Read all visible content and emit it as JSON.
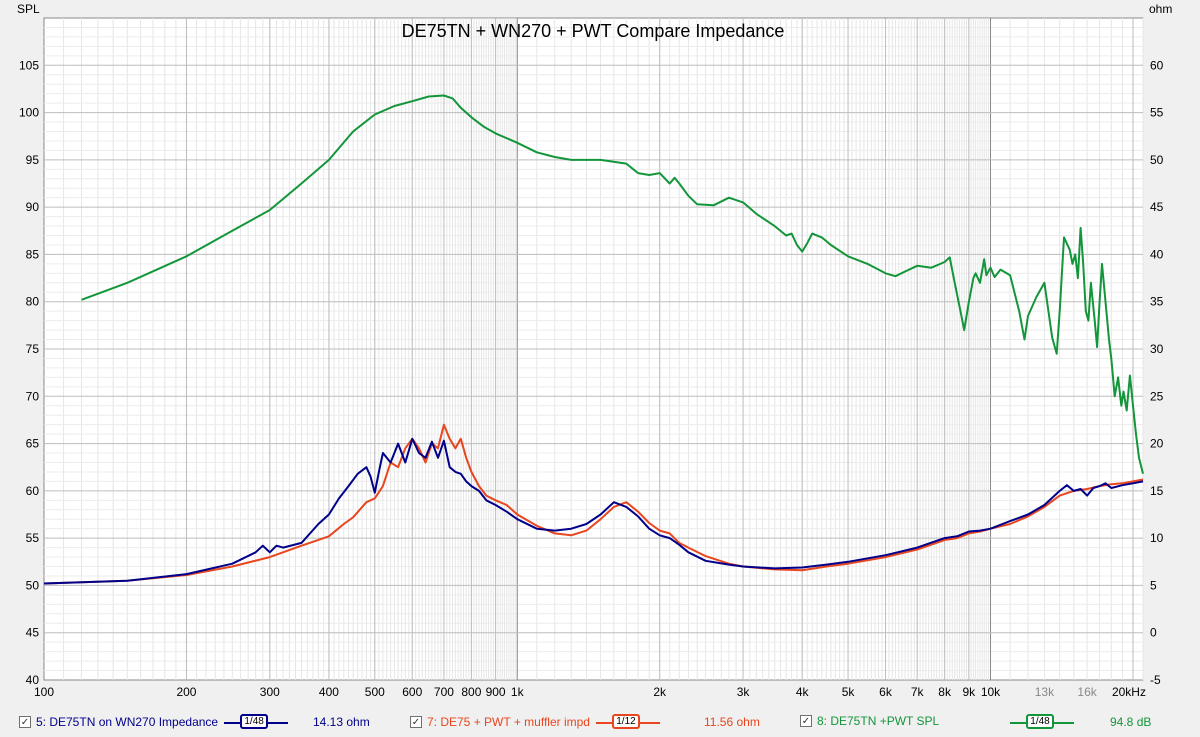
{
  "chart_data": {
    "type": "line",
    "title": "DE75TN + WN270 + PWT Compare Impedance",
    "ylabel_left": "SPL",
    "ylabel_right": "ohm",
    "x_scale": "log",
    "xlim": [
      100,
      21000
    ],
    "ylim_left": [
      40,
      110
    ],
    "ylim_right": [
      -5,
      65
    ],
    "grid": true,
    "x_ticks": [
      {
        "v": 100,
        "label": "100"
      },
      {
        "v": 200,
        "label": "200"
      },
      {
        "v": 300,
        "label": "300"
      },
      {
        "v": 400,
        "label": "400"
      },
      {
        "v": 500,
        "label": "500"
      },
      {
        "v": 600,
        "label": "600"
      },
      {
        "v": 700,
        "label": "700"
      },
      {
        "v": 800,
        "label": "800"
      },
      {
        "v": 900,
        "label": "900"
      },
      {
        "v": 1000,
        "label": "1k"
      },
      {
        "v": 2000,
        "label": "2k"
      },
      {
        "v": 3000,
        "label": "3k"
      },
      {
        "v": 4000,
        "label": "4k"
      },
      {
        "v": 5000,
        "label": "5k"
      },
      {
        "v": 6000,
        "label": "6k"
      },
      {
        "v": 7000,
        "label": "7k"
      },
      {
        "v": 8000,
        "label": "8k"
      },
      {
        "v": 9000,
        "label": "9k"
      },
      {
        "v": 10000,
        "label": "10k"
      },
      {
        "v": 13000,
        "label": "13k"
      },
      {
        "v": 16000,
        "label": "16k"
      },
      {
        "v": 20000,
        "label": "20kHz"
      }
    ],
    "y_ticks_left": [
      40,
      45,
      50,
      55,
      60,
      65,
      70,
      75,
      80,
      85,
      90,
      95,
      100,
      105
    ],
    "y_ticks_right": [
      -5,
      0,
      5,
      10,
      15,
      20,
      25,
      30,
      35,
      40,
      45,
      50,
      55,
      60
    ],
    "series": [
      {
        "name": "5: DE75TN on WN270 Impedance",
        "axis": "right",
        "color": "#00008b",
        "smoothing": "1/48",
        "cursor_value": "14.13 ohm",
        "x": [
          100,
          150,
          200,
          250,
          280,
          290,
          300,
          310,
          320,
          350,
          380,
          400,
          420,
          440,
          460,
          480,
          490,
          500,
          510,
          520,
          540,
          560,
          580,
          600,
          620,
          640,
          660,
          680,
          700,
          720,
          740,
          760,
          780,
          800,
          830,
          860,
          900,
          950,
          1000,
          1100,
          1200,
          1300,
          1400,
          1500,
          1600,
          1700,
          1800,
          1900,
          2000,
          2100,
          2200,
          2300,
          2500,
          2800,
          3000,
          3500,
          4000,
          4500,
          5000,
          6000,
          7000,
          8000,
          8500,
          9000,
          9500,
          10000,
          11000,
          12000,
          13000,
          14000,
          14500,
          15000,
          15500,
          16000,
          16500,
          17000,
          17500,
          18000,
          19000,
          20000,
          21000
        ],
        "y": [
          5.2,
          5.5,
          6.2,
          7.3,
          8.5,
          9.2,
          8.5,
          9.2,
          9.0,
          9.5,
          11.5,
          12.5,
          14.2,
          15.5,
          16.8,
          17.5,
          16.5,
          14.8,
          17.0,
          19.0,
          18.0,
          20.0,
          18.0,
          20.5,
          19.0,
          18.5,
          20.2,
          18.5,
          20.3,
          17.5,
          17.0,
          16.8,
          16.0,
          15.5,
          15.0,
          14.0,
          13.5,
          12.8,
          12.0,
          11.0,
          10.8,
          11.0,
          11.5,
          12.5,
          13.8,
          13.3,
          12.3,
          11.0,
          10.3,
          10.0,
          9.3,
          8.5,
          7.6,
          7.2,
          7.0,
          6.8,
          6.9,
          7.2,
          7.5,
          8.2,
          9.0,
          10.0,
          10.2,
          10.7,
          10.8,
          11.0,
          11.8,
          12.5,
          13.5,
          15.0,
          15.6,
          15.0,
          15.2,
          14.5,
          15.3,
          15.5,
          15.8,
          15.3,
          15.6,
          15.8,
          16.0
        ]
      },
      {
        "name": "7: DE75 + PWT + muffler impd",
        "axis": "right",
        "color": "#e8461e",
        "smoothing": "1/12",
        "cursor_value": "11.56 ohm",
        "x": [
          100,
          150,
          200,
          250,
          300,
          350,
          400,
          430,
          450,
          480,
          500,
          520,
          540,
          560,
          580,
          600,
          620,
          640,
          660,
          680,
          700,
          720,
          740,
          760,
          780,
          800,
          830,
          860,
          900,
          950,
          1000,
          1100,
          1200,
          1300,
          1400,
          1500,
          1600,
          1700,
          1800,
          1900,
          2000,
          2100,
          2200,
          2300,
          2500,
          2800,
          3000,
          3500,
          4000,
          4500,
          5000,
          6000,
          7000,
          8000,
          8500,
          9000,
          9500,
          10000,
          11000,
          12000,
          13000,
          14000,
          15000,
          16000,
          17000,
          18000,
          19000,
          20000,
          21000
        ],
        "y": [
          5.2,
          5.5,
          6.1,
          7.0,
          8.0,
          9.2,
          10.2,
          11.5,
          12.2,
          13.8,
          14.2,
          15.5,
          18.0,
          17.5,
          19.5,
          20.5,
          19.5,
          18.0,
          20.0,
          19.5,
          22.0,
          20.5,
          19.5,
          20.5,
          18.5,
          17.0,
          15.5,
          14.5,
          14.0,
          13.5,
          12.5,
          11.3,
          10.5,
          10.3,
          10.8,
          12.0,
          13.3,
          13.8,
          12.8,
          11.6,
          10.8,
          10.5,
          9.5,
          9.0,
          8.1,
          7.3,
          7.0,
          6.7,
          6.6,
          7.0,
          7.3,
          8.0,
          8.8,
          9.8,
          10.0,
          10.5,
          10.7,
          11.0,
          11.5,
          12.3,
          13.3,
          14.5,
          15.0,
          15.2,
          15.5,
          15.7,
          15.8,
          16.0,
          16.2
        ]
      },
      {
        "name": "8: DE75TN +PWT SPL",
        "axis": "left",
        "color": "#13953a",
        "smoothing": "1/48",
        "cursor_value": "94.8 dB",
        "x": [
          120,
          150,
          200,
          250,
          300,
          350,
          400,
          450,
          500,
          550,
          600,
          650,
          700,
          730,
          760,
          800,
          850,
          900,
          1000,
          1100,
          1200,
          1300,
          1500,
          1700,
          1800,
          1900,
          2000,
          2100,
          2150,
          2200,
          2300,
          2400,
          2600,
          2800,
          3000,
          3200,
          3500,
          3700,
          3800,
          3900,
          4000,
          4100,
          4200,
          4400,
          4600,
          5000,
          5500,
          6000,
          6300,
          6600,
          7000,
          7500,
          8000,
          8200,
          8400,
          8600,
          8800,
          9000,
          9200,
          9300,
          9500,
          9700,
          9800,
          10000,
          10200,
          10500,
          11000,
          11500,
          11800,
          12000,
          12500,
          13000,
          13500,
          13800,
          14000,
          14300,
          14700,
          14900,
          15100,
          15300,
          15500,
          15700,
          15900,
          16100,
          16300,
          16600,
          16800,
          17000,
          17200,
          17500,
          17800,
          18000,
          18300,
          18600,
          18900,
          19100,
          19400,
          19700,
          20000,
          20300,
          20600,
          21000
        ],
        "y": [
          80.2,
          82.0,
          84.8,
          87.5,
          89.7,
          92.5,
          95.0,
          98.0,
          99.8,
          100.7,
          101.2,
          101.7,
          101.8,
          101.5,
          100.5,
          99.5,
          98.5,
          97.8,
          96.8,
          95.8,
          95.3,
          95.0,
          95.0,
          94.6,
          93.6,
          93.4,
          93.6,
          92.5,
          93.1,
          92.5,
          91.2,
          90.3,
          90.2,
          91.0,
          90.5,
          89.3,
          88.0,
          87.0,
          87.2,
          86.0,
          85.3,
          86.2,
          87.2,
          86.8,
          86.0,
          84.8,
          84.0,
          83.0,
          82.7,
          83.2,
          83.8,
          83.6,
          84.2,
          84.7,
          82.0,
          79.5,
          77.0,
          80.0,
          82.5,
          83.0,
          82.0,
          84.5,
          82.8,
          83.6,
          82.6,
          83.4,
          82.8,
          79.0,
          76.0,
          78.5,
          80.5,
          82.0,
          76.2,
          74.5,
          79.0,
          86.8,
          85.5,
          84.0,
          85.0,
          82.5,
          87.8,
          84.0,
          79.0,
          78.0,
          82.0,
          78.0,
          75.2,
          80.0,
          84.0,
          80.0,
          76.0,
          74.0,
          70.0,
          72.0,
          69.0,
          70.5,
          68.5,
          72.2,
          69.0,
          66.0,
          63.5,
          61.8
        ]
      }
    ]
  },
  "legend": {
    "items": [
      {
        "label": "5: DE75TN on WN270 Impedance",
        "smoothing": "1/48",
        "value": "14.13 ohm",
        "color": "#00008b",
        "checked": "✓"
      },
      {
        "label": "7: DE75 + PWT + muffler impd",
        "smoothing": "1/12",
        "value": "11.56 ohm",
        "color": "#e8461e",
        "checked": "✓"
      },
      {
        "label": "8: DE75TN +PWT SPL",
        "smoothing": "1/48",
        "value": "94.8 dB",
        "color": "#13953a",
        "checked": "✓"
      }
    ]
  }
}
